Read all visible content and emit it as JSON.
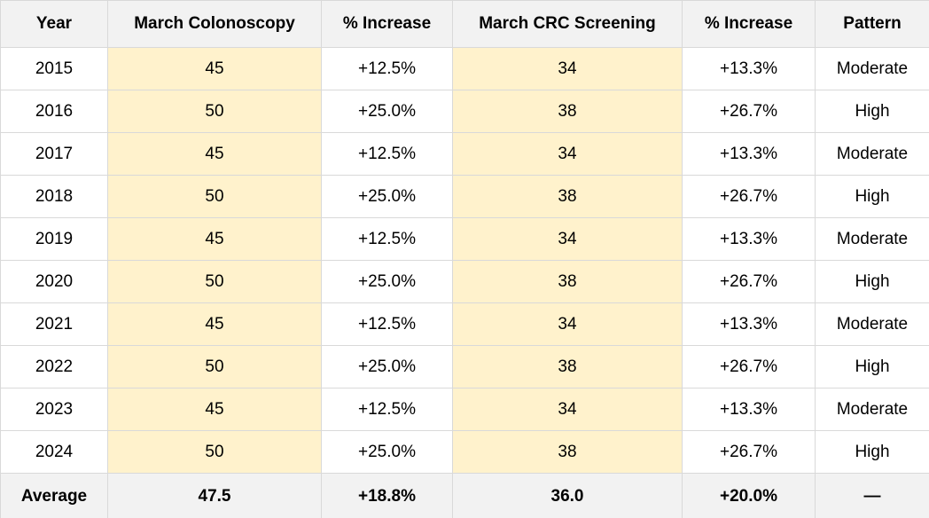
{
  "table": {
    "headers": [
      "Year",
      "March Colonoscopy",
      "% Increase",
      "March CRC Screening",
      "% Increase",
      "Pattern"
    ],
    "rows": [
      {
        "year": "2015",
        "colonoscopy": "45",
        "colonoscopy_increase": "+12.5%",
        "crc_screening": "34",
        "crc_increase": "+13.3%",
        "pattern": "Moderate"
      },
      {
        "year": "2016",
        "colonoscopy": "50",
        "colonoscopy_increase": "+25.0%",
        "crc_screening": "38",
        "crc_increase": "+26.7%",
        "pattern": "High"
      },
      {
        "year": "2017",
        "colonoscopy": "45",
        "colonoscopy_increase": "+12.5%",
        "crc_screening": "34",
        "crc_increase": "+13.3%",
        "pattern": "Moderate"
      },
      {
        "year": "2018",
        "colonoscopy": "50",
        "colonoscopy_increase": "+25.0%",
        "crc_screening": "38",
        "crc_increase": "+26.7%",
        "pattern": "High"
      },
      {
        "year": "2019",
        "colonoscopy": "45",
        "colonoscopy_increase": "+12.5%",
        "crc_screening": "34",
        "crc_increase": "+13.3%",
        "pattern": "Moderate"
      },
      {
        "year": "2020",
        "colonoscopy": "50",
        "colonoscopy_increase": "+25.0%",
        "crc_screening": "38",
        "crc_increase": "+26.7%",
        "pattern": "High"
      },
      {
        "year": "2021",
        "colonoscopy": "45",
        "colonoscopy_increase": "+12.5%",
        "crc_screening": "34",
        "crc_increase": "+13.3%",
        "pattern": "Moderate"
      },
      {
        "year": "2022",
        "colonoscopy": "50",
        "colonoscopy_increase": "+25.0%",
        "crc_screening": "38",
        "crc_increase": "+26.7%",
        "pattern": "High"
      },
      {
        "year": "2023",
        "colonoscopy": "45",
        "colonoscopy_increase": "+12.5%",
        "crc_screening": "34",
        "crc_increase": "+13.3%",
        "pattern": "Moderate"
      },
      {
        "year": "2024",
        "colonoscopy": "50",
        "colonoscopy_increase": "+25.0%",
        "crc_screening": "38",
        "crc_increase": "+26.7%",
        "pattern": "High"
      }
    ],
    "footer": {
      "label": "Average",
      "colonoscopy": "47.5",
      "colonoscopy_increase": "+18.8%",
      "crc_screening": "36.0",
      "crc_increase": "+20.0%",
      "pattern": "—"
    }
  },
  "colors": {
    "header_background": "#f2f2f2",
    "highlight_background": "#fff2cc",
    "border": "#d9d9d9",
    "text": "#000000"
  }
}
